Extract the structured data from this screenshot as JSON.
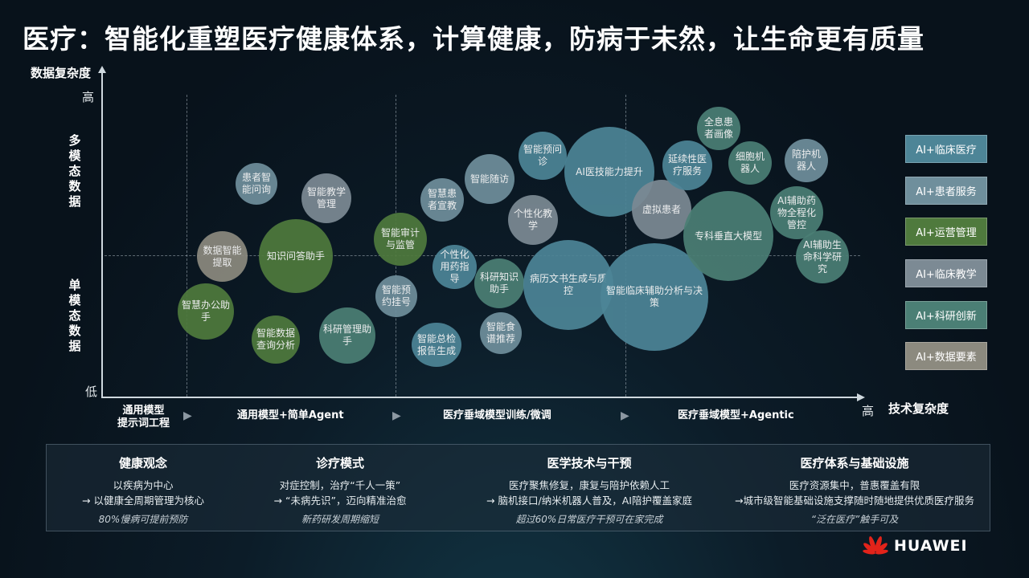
{
  "title": "医疗：智能化重塑医疗健康体系，计算健康，防病于未然，让生命更有质量",
  "y_axis": {
    "label": "数据复杂度",
    "high": "高",
    "low": "低",
    "top_group": "多模态数据",
    "bottom_group": "单模态数据"
  },
  "x_axis": {
    "label": "技术复杂度",
    "high": "高",
    "stages": [
      "通用模型\n提示词工程",
      "通用模型+简单Agent",
      "医疗垂域模型训练/微调",
      "医疗垂域模型+Agentic"
    ]
  },
  "colors": {
    "clinical": "#4d8597",
    "patient": "#6f8f9c",
    "operations": "#4f7a3d",
    "teaching": "#7c8a94",
    "research": "#4b7f75",
    "data": "#8c8a7f"
  },
  "legend": [
    {
      "label": "AI+临床医疗",
      "category": "clinical"
    },
    {
      "label": "AI+患者服务",
      "category": "patient"
    },
    {
      "label": "AI+运营管理",
      "category": "operations"
    },
    {
      "label": "AI+临床教学",
      "category": "teaching"
    },
    {
      "label": "AI+科研创新",
      "category": "research"
    },
    {
      "label": "AI+数据要素",
      "category": "data"
    }
  ],
  "bubbles": [
    {
      "label": "患者智能问询",
      "category": "patient"
    },
    {
      "label": "智能教学管理",
      "category": "teaching"
    },
    {
      "label": "数据智能提取",
      "category": "data"
    },
    {
      "label": "知识问答助手",
      "category": "operations"
    },
    {
      "label": "智慧办公助手",
      "category": "operations"
    },
    {
      "label": "智能数据查询分析",
      "category": "operations"
    },
    {
      "label": "科研管理助手",
      "category": "research"
    },
    {
      "label": "智能审计与监管",
      "category": "operations"
    },
    {
      "label": "智能预约挂号",
      "category": "patient"
    },
    {
      "label": "智能总检报告生成",
      "category": "clinical"
    },
    {
      "label": "智慧患者宣教",
      "category": "patient"
    },
    {
      "label": "智能随访",
      "category": "patient"
    },
    {
      "label": "个性化用药指导",
      "category": "clinical"
    },
    {
      "label": "科研知识助手",
      "category": "research"
    },
    {
      "label": "智能食谱推荐",
      "category": "patient"
    },
    {
      "label": "智能预问诊",
      "category": "clinical"
    },
    {
      "label": "个性化教学",
      "category": "teaching"
    },
    {
      "label": "AI医技能力提升",
      "category": "clinical"
    },
    {
      "label": "病历文书生成与质控",
      "category": "clinical"
    },
    {
      "label": "虚拟患者",
      "category": "teaching"
    },
    {
      "label": "智能临床辅助分析与决策",
      "category": "clinical"
    },
    {
      "label": "全息患者画像",
      "category": "research"
    },
    {
      "label": "延续性医疗服务",
      "category": "clinical"
    },
    {
      "label": "细胞机器人",
      "category": "research"
    },
    {
      "label": "陪护机器人",
      "category": "patient"
    },
    {
      "label": "专科垂直大模型",
      "category": "research"
    },
    {
      "label": "AI辅助药物全程化管控",
      "category": "research"
    },
    {
      "label": "AI辅助生命科学研究",
      "category": "research"
    }
  ],
  "panel": [
    {
      "heading": "健康观念",
      "lines": [
        "以疾病为中心",
        "→ 以健康全周期管理为核心"
      ],
      "note": "80%慢病可提前预防"
    },
    {
      "heading": "诊疗模式",
      "lines": [
        "对症控制，治疗“千人一策”",
        "→ “未病先识”，迈向精准治愈"
      ],
      "note": "新药研发周期缩短"
    },
    {
      "heading": "医学技术与干预",
      "lines": [
        "医疗聚焦修复，康复与陪护依赖人工",
        "→ 脑机接口/纳米机器人普及，AI陪护覆盖家庭"
      ],
      "note": "超过60%日常医疗干预可在家完成"
    },
    {
      "heading": "医疗体系与基础设施",
      "lines": [
        "医疗资源集中，普惠覆盖有限",
        "→城市级智能基础设施支撑随时随地提供优质医疗服务"
      ],
      "note": "“泛在医疗”触手可及"
    }
  ],
  "brand": "HUAWEI"
}
